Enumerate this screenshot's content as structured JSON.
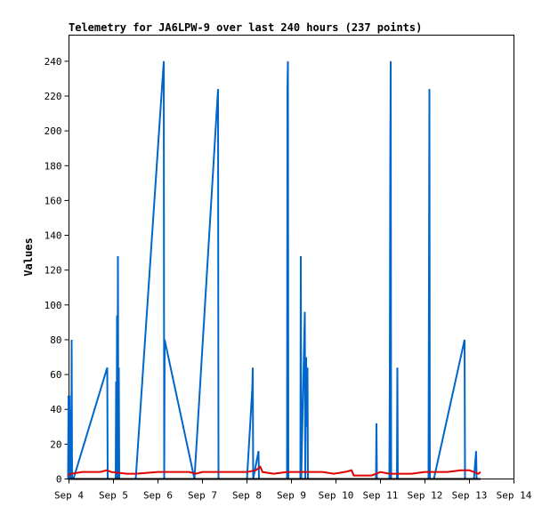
{
  "chart_data": {
    "type": "line",
    "title": "Telemetry for JA6LPW-9 over last 240 hours (237 points)",
    "ylabel": "Values",
    "xlabel": "",
    "xlim": [
      4.0,
      14.0
    ],
    "ylim": [
      0,
      255
    ],
    "y_ticks": [
      0,
      20,
      40,
      60,
      80,
      100,
      120,
      140,
      160,
      180,
      200,
      220,
      240
    ],
    "x_ticks": [
      {
        "value": 4,
        "label": "Sep 4"
      },
      {
        "value": 5,
        "label": "Sep 5"
      },
      {
        "value": 6,
        "label": "Sep 6"
      },
      {
        "value": 7,
        "label": "Sep 7"
      },
      {
        "value": 8,
        "label": "Sep 8"
      },
      {
        "value": 9,
        "label": "Sep 9"
      },
      {
        "value": 10,
        "label": "Sep 10"
      },
      {
        "value": 11,
        "label": "Sep 11"
      },
      {
        "value": 12,
        "label": "Sep 12"
      },
      {
        "value": 13,
        "label": "Sep 13"
      },
      {
        "value": 14,
        "label": "Sep 14"
      }
    ],
    "grid": false,
    "legend": "none",
    "series": [
      {
        "color": "#0066cc",
        "points": [
          [
            3.98,
            0
          ],
          [
            3.99,
            48
          ],
          [
            4.0,
            0
          ],
          [
            4.01,
            48
          ],
          [
            4.02,
            0
          ],
          [
            4.03,
            40
          ],
          [
            4.05,
            0
          ],
          [
            4.06,
            80
          ],
          [
            4.07,
            0
          ],
          [
            4.1,
            0
          ],
          [
            4.86,
            64
          ],
          [
            4.87,
            0
          ],
          [
            5.05,
            0
          ],
          [
            5.06,
            56
          ],
          [
            5.07,
            0
          ],
          [
            5.08,
            94
          ],
          [
            5.09,
            0
          ],
          [
            5.1,
            128
          ],
          [
            5.11,
            0
          ],
          [
            5.12,
            64
          ],
          [
            5.13,
            0
          ],
          [
            5.5,
            0
          ],
          [
            6.13,
            240
          ],
          [
            6.14,
            0
          ],
          [
            6.15,
            80
          ],
          [
            6.82,
            0
          ],
          [
            7.35,
            224
          ],
          [
            7.36,
            0
          ],
          [
            7.37,
            0
          ],
          [
            8.0,
            0
          ],
          [
            8.12,
            52
          ],
          [
            8.13,
            64
          ],
          [
            8.14,
            0
          ],
          [
            8.26,
            16
          ],
          [
            8.27,
            0
          ],
          [
            8.9,
            0
          ],
          [
            8.91,
            224
          ],
          [
            8.92,
            240
          ],
          [
            8.93,
            0
          ],
          [
            9.2,
            0
          ],
          [
            9.21,
            128
          ],
          [
            9.22,
            0
          ],
          [
            9.3,
            96
          ],
          [
            9.31,
            0
          ],
          [
            9.33,
            70
          ],
          [
            9.34,
            30
          ],
          [
            9.35,
            50
          ],
          [
            9.36,
            64
          ],
          [
            9.37,
            0
          ],
          [
            10.9,
            0
          ],
          [
            10.91,
            32
          ],
          [
            10.92,
            0
          ],
          [
            11.2,
            0
          ],
          [
            11.21,
            60
          ],
          [
            11.22,
            180
          ],
          [
            11.23,
            240
          ],
          [
            11.24,
            0
          ],
          [
            11.37,
            0
          ],
          [
            11.38,
            64
          ],
          [
            11.39,
            0
          ],
          [
            12.08,
            0
          ],
          [
            12.09,
            112
          ],
          [
            12.1,
            224
          ],
          [
            12.11,
            0
          ],
          [
            12.2,
            0
          ],
          [
            12.89,
            80
          ],
          [
            12.9,
            0
          ],
          [
            13.1,
            0
          ],
          [
            13.15,
            16
          ],
          [
            13.16,
            0
          ]
        ]
      },
      {
        "color": "#dd0000",
        "points": [
          [
            3.98,
            2
          ],
          [
            4.05,
            3
          ],
          [
            4.3,
            4
          ],
          [
            4.7,
            4
          ],
          [
            4.85,
            5
          ],
          [
            4.95,
            4
          ],
          [
            5.3,
            3
          ],
          [
            5.5,
            3
          ],
          [
            6.0,
            4
          ],
          [
            6.3,
            4
          ],
          [
            6.7,
            4
          ],
          [
            6.85,
            3
          ],
          [
            7.0,
            4
          ],
          [
            7.5,
            4
          ],
          [
            8.0,
            4
          ],
          [
            8.2,
            5
          ],
          [
            8.3,
            7
          ],
          [
            8.35,
            4
          ],
          [
            8.6,
            3
          ],
          [
            8.9,
            4
          ],
          [
            9.3,
            4
          ],
          [
            9.7,
            4
          ],
          [
            9.95,
            3
          ],
          [
            10.2,
            4
          ],
          [
            10.35,
            5
          ],
          [
            10.4,
            2
          ],
          [
            10.8,
            2
          ],
          [
            11.0,
            4
          ],
          [
            11.2,
            3
          ],
          [
            11.45,
            3
          ],
          [
            11.7,
            3
          ],
          [
            12.0,
            4
          ],
          [
            12.25,
            4
          ],
          [
            12.5,
            4
          ],
          [
            12.8,
            5
          ],
          [
            13.0,
            5
          ],
          [
            13.2,
            3
          ],
          [
            13.25,
            4
          ]
        ]
      },
      {
        "color": "#000000",
        "points": [
          [
            3.98,
            0
          ],
          [
            13.25,
            0
          ]
        ]
      }
    ]
  }
}
